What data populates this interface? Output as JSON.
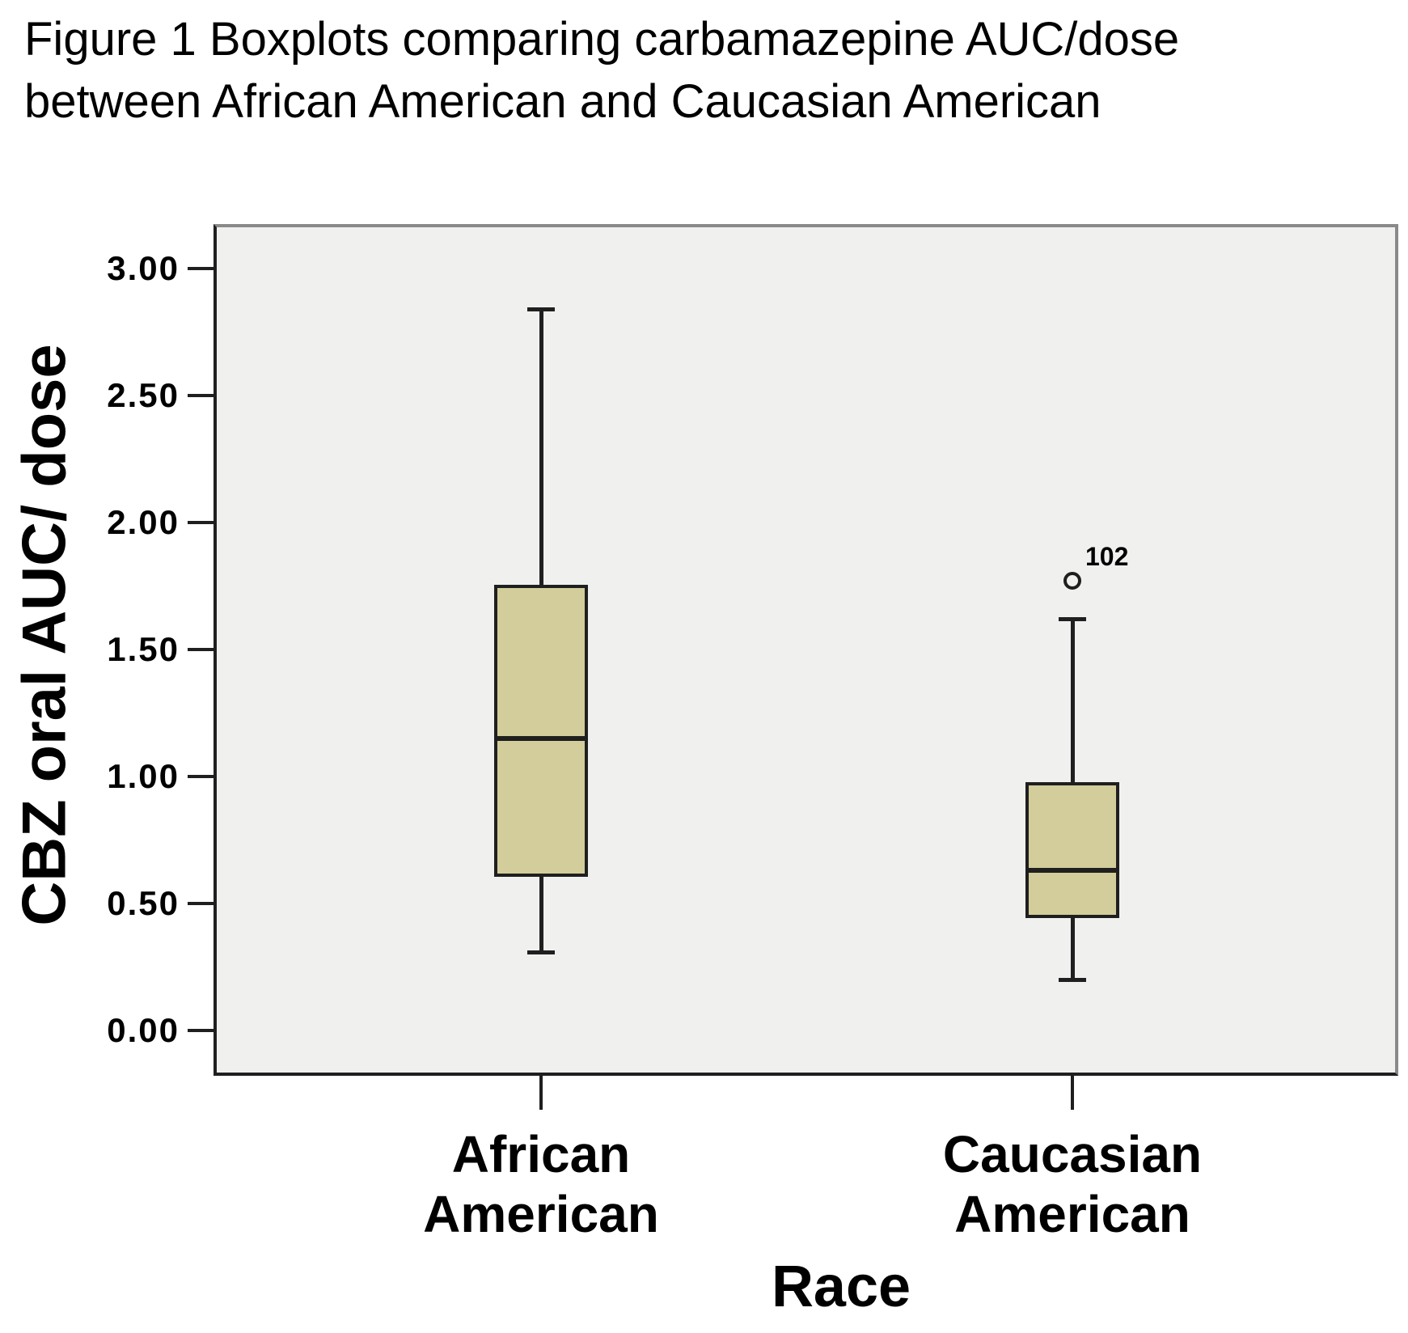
{
  "figure": {
    "title_lines": [
      "Figure 1 Boxplots comparing carbamazepine AUC/dose",
      "between African American and Caucasian American"
    ]
  },
  "chart_data": {
    "type": "boxplot",
    "title": "Figure 1 Boxplots comparing carbamazepine AUC/dose between African American and Caucasian American",
    "xlabel": "Race",
    "ylabel": "CBZ oral AUC/ dose",
    "ylim": [
      -0.17,
      3.16
    ],
    "yticks": {
      "values": [
        3.0,
        2.5,
        2.0,
        1.5,
        1.0,
        0.5,
        0.0
      ],
      "labels": [
        "3.00",
        "2.50",
        "2.00",
        "1.50",
        "1.00",
        "0.50",
        "0.00"
      ]
    },
    "categories": [
      "African American",
      "Caucasian American"
    ],
    "series": [
      {
        "name": "African American",
        "label_lines": [
          "African",
          "American"
        ],
        "whisker_low": 0.31,
        "q1": 0.61,
        "median": 1.15,
        "q3": 1.75,
        "whisker_high": 2.84,
        "outliers": []
      },
      {
        "name": "Caucasian American",
        "label_lines": [
          "Caucasian",
          "American"
        ],
        "whisker_low": 0.2,
        "q1": 0.45,
        "median": 0.63,
        "q3": 0.97,
        "whisker_high": 1.62,
        "outliers": [
          {
            "value": 1.77,
            "label": "102"
          }
        ]
      }
    ],
    "colors": {
      "box_fill": "#d2cd9a",
      "line": "#1f1f1f",
      "plot_bg": "#f0f0ef",
      "frame_gray": "#8a8a8a"
    },
    "grid": false,
    "legend": "none"
  }
}
